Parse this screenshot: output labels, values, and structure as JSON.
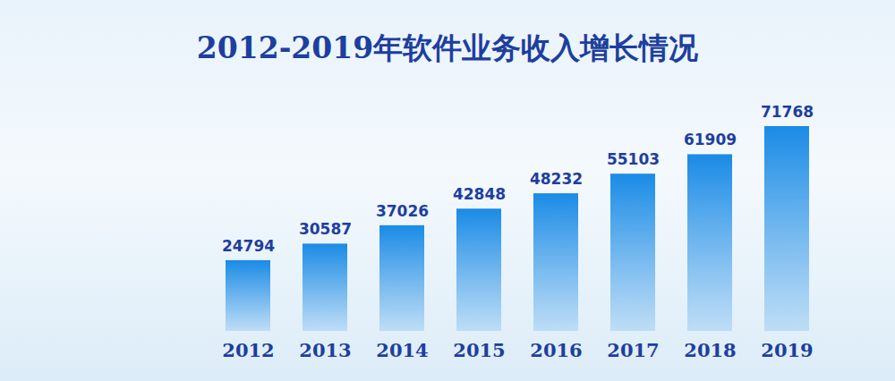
{
  "chart_data": {
    "type": "bar",
    "title": "2012-2019年软件业务收入增长情况",
    "categories": [
      "2012",
      "2013",
      "2014",
      "2015",
      "2016",
      "2017",
      "2018",
      "2019"
    ],
    "values": [
      24794,
      30587,
      37026,
      42848,
      48232,
      55103,
      61909,
      71768
    ],
    "color": "#1a8be6",
    "data_labels": true,
    "tick_labels": "x"
  }
}
